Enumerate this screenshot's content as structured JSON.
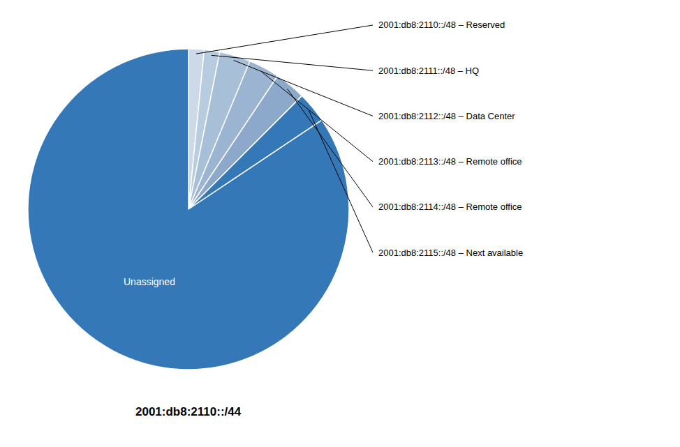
{
  "chart_data": {
    "type": "pie",
    "categories": [
      "2001:db8:2110::/48 – Reserved",
      "2001:db8:2111::/48 – HQ",
      "2001:db8:2112::/48 – Data Center",
      "2001:db8:2113::/48 – Remote office",
      "2001:db8:2114::/48 – Remote office",
      "2001:db8:2115::/48 – Next available",
      "Unassigned"
    ],
    "values": [
      1,
      1,
      2,
      2,
      2,
      2,
      54
    ],
    "colors": [
      "#ccd9e8",
      "#b8ccdf",
      "#a8bfd8",
      "#9ab4d2",
      "#8ca8ca",
      "#3578b8",
      "#3578b8"
    ],
    "annotations": [
      "2001:db8:2110::/44"
    ]
  }
}
